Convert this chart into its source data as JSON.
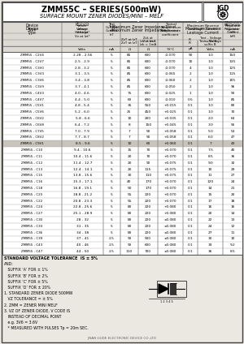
{
  "title": "ZMM55C – SERIES(500mW)",
  "subtitle": "SURFACE MOUNT ZENER DIODES/MINI – MELF",
  "bg_color": "#ebe8e2",
  "col_units": [
    "",
    "Volts",
    "mA",
    "Ω",
    "Ω",
    "%/°C",
    "μA",
    "Volts",
    "mA"
  ],
  "rows": [
    [
      "ZMM55 - C2V4",
      "2.28 - 2.56",
      "5",
      "85",
      "600",
      "-0.070",
      "50",
      "1.0",
      "150"
    ],
    [
      "ZMM55 - C2V7",
      "2.5 - 2.9",
      "5",
      "85",
      "600",
      "-0.070",
      "10",
      "1.0",
      "135"
    ],
    [
      "ZMM55 - C3V0",
      "2.8 - 3.2",
      "5",
      "85",
      "600",
      "-0.070",
      "4",
      "1.0",
      "125"
    ],
    [
      "ZMM55 - C3V3",
      "3.1 - 3.5",
      "5",
      "85",
      "600",
      "-0.065",
      "2",
      "1.0",
      "115"
    ],
    [
      "ZMM55 - C3V6",
      "3.4 - 3.8",
      "5",
      "85",
      "600",
      "-0.060",
      "2",
      "1.0",
      "105"
    ],
    [
      "ZMM55 - C3V9",
      "3.7 - 4.1",
      "5",
      "85",
      "600",
      "-0.050",
      "2",
      "1.0",
      "96"
    ],
    [
      "ZMM55 - C4V3",
      "4.0 - 4.6",
      "5",
      "75",
      "600",
      "-0.025",
      "1",
      "1.0",
      "90"
    ],
    [
      "ZMM55 - C4V7",
      "4.4 - 5.0",
      "5",
      "60",
      "600",
      "-0.010",
      "0.5",
      "1.0",
      "85"
    ],
    [
      "ZMM55 - C5V1",
      "4.8 - 5.4",
      "5",
      "35",
      "550",
      "+0.015",
      "0.1",
      "1.0",
      "80"
    ],
    [
      "ZMM55 - C5V6",
      "5.2 - 6.0",
      "5",
      "25",
      "450",
      "+0.025",
      "0.1",
      "1.0",
      "70"
    ],
    [
      "ZMM55 - C6V2",
      "5.8 - 6.6",
      "5",
      "10",
      "200",
      "+0.035",
      "0.1",
      "2.0",
      "64"
    ],
    [
      "ZMM55 - C6V8",
      "6.4 - 7.2",
      "5",
      "8",
      "150",
      "+0.045",
      "0.1",
      "3.0",
      "56"
    ],
    [
      "ZMM55 - C7V5",
      "7.0 - 7.9",
      "5",
      "7",
      "50",
      "+0.058",
      "0.1",
      "5.0",
      "53"
    ],
    [
      "ZMM55 - C8V2",
      "7.7 - 8.7",
      "5",
      "7",
      "50",
      "+0.058",
      "0.1",
      "6.0",
      "47"
    ],
    [
      "ZMM55 - C9V1",
      "8.5 - 9.6",
      "5",
      "10",
      "60",
      "+0.060",
      "0.1",
      "7",
      "43"
    ],
    [
      "ZMM55 - C10",
      "9.4 - 10.6",
      "5",
      "15",
      "70",
      "+0.070",
      "0.1",
      "7.5",
      "40"
    ],
    [
      "ZMM55 - C11",
      "10.4 - 11.6",
      "5",
      "20",
      "70",
      "+0.070",
      "0.1",
      "8.5",
      "36"
    ],
    [
      "ZMM55 - C12",
      "11.4 - 12.7",
      "5",
      "20",
      "90",
      "+0.075",
      "0.1",
      "9.0",
      "32"
    ],
    [
      "ZMM55 - C13",
      "12.4 - 14.1",
      "5",
      "20",
      "115",
      "+0.075",
      "0.1",
      "10",
      "29"
    ],
    [
      "ZMM55 - C15",
      "13.8 - 15.6",
      "5",
      "30",
      "110",
      "+0.075",
      "0.1",
      "11",
      "27"
    ],
    [
      "ZMM55 - C16",
      "15.3 - 17.1",
      "5",
      "40",
      "170",
      "+0.070",
      "0.1",
      "120",
      "24"
    ],
    [
      "ZMM55 - C18",
      "16.8 - 19.1",
      "5",
      "50",
      "170",
      "+0.070",
      "0.1",
      "14",
      "21"
    ],
    [
      "ZMM55 - C20",
      "18.8 - 21.2",
      "5",
      "55",
      "220",
      "+0.070",
      "0.1",
      "15",
      "20"
    ],
    [
      "ZMM55 - C22",
      "20.8 - 23.3",
      "5",
      "55",
      "220",
      "+0.070",
      "0.1",
      "17",
      "18"
    ],
    [
      "ZMM55 - C24",
      "22.8 - 25.6",
      "5",
      "80",
      "220",
      "+0.080",
      "0.1",
      "16",
      "16"
    ],
    [
      "ZMM55 - C27",
      "25.1 - 28.9",
      "5",
      "80",
      "220",
      "+0.080",
      "0.1",
      "20",
      "14"
    ],
    [
      "ZMM55 - C30",
      "28 - 32",
      "5",
      "80",
      "220",
      "±0.080",
      "0.1",
      "22",
      "13"
    ],
    [
      "ZMM55 - C33",
      "31 - 35",
      "5",
      "80",
      "220",
      "±0.080",
      "0.1",
      "24",
      "12"
    ],
    [
      "ZMM55 - C36",
      "34 - 38",
      "5",
      "80",
      "220",
      "±0.080",
      "0.1",
      "27",
      "11"
    ],
    [
      "ZMM55 - C39",
      "37 - 41",
      "2.5",
      "90",
      "500",
      "±0.080",
      "0.1",
      "30",
      "10"
    ],
    [
      "ZMM55 - C43",
      "40 - 46",
      "2.5",
      "90",
      "600",
      "±0.080",
      "0.1",
      "33",
      "9.2"
    ],
    [
      "ZMM55 - C47",
      "44 - 50",
      "2.5",
      "110",
      "700",
      "±0.080",
      "0.1",
      "36",
      "8.5"
    ]
  ],
  "highlight_row": 14,
  "notes": [
    "STANDARD VOLTAGE TOLERANCE  IS ± 5%",
    "AND:",
    "   SUFFIX ‘A’ FOR ± 1%",
    "   SUFFIX ‘B’ FOR ± 2%",
    "   SUFFIX ‘C’ FOR ± 5%",
    "   SUFFIX ‘D’ FOR ± 20%",
    "1. STANDARD ZENER DIODE 500MW",
    "   VZ TOLERANCE = ± 5%",
    "2. ZMM = ZENER MINI MELF",
    "3. VZ OF ZENER DIODE, V CODE IS",
    "   INSTEAD OF DECIMAL POINT",
    "   e.g. 3V6 = 3.6V",
    "   * MEASURED WITH PULSES Tp = 20m SEC."
  ],
  "footer": "JINAN GUDE ELECTRONIC DEVICE CO.,LTD"
}
